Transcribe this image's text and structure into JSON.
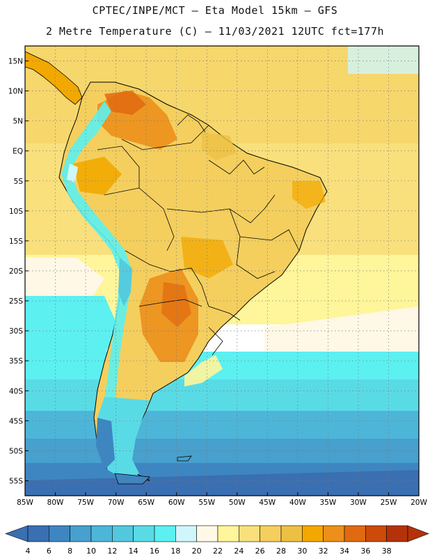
{
  "header": {
    "line1": "CPTEC/INPE/MCT –  Eta Model 15km – GFS",
    "line2": "2 Metre Temperature (C) – 11/03/2021 12UTC fct=177h"
  },
  "map": {
    "projection": "lat-lon",
    "lon_range": [
      -85,
      -20
    ],
    "lat_range": [
      -57.5,
      17.5
    ],
    "lat_ticks": [
      "15N",
      "10N",
      "5N",
      "EQ",
      "5S",
      "10S",
      "15S",
      "20S",
      "25S",
      "30S",
      "35S",
      "40S",
      "45S",
      "50S",
      "55S"
    ],
    "lon_ticks": [
      "85W",
      "80W",
      "75W",
      "70W",
      "65W",
      "60W",
      "55W",
      "50W",
      "45W",
      "40W",
      "35W",
      "30W",
      "25W",
      "20W"
    ]
  },
  "colorbar": {
    "labels": [
      "4",
      "6",
      "8",
      "10",
      "12",
      "14",
      "16",
      "18",
      "20",
      "22",
      "24",
      "26",
      "28",
      "30",
      "32",
      "34",
      "36",
      "38"
    ],
    "colors": [
      "#3a6fb2",
      "#3e86c1",
      "#47a0cd",
      "#4db6d8",
      "#52c8de",
      "#59dbe6",
      "#5cf0f1",
      "#cff6fb",
      "#fff8e6",
      "#fff59a",
      "#f9e07c",
      "#f4cf5e",
      "#ecc043",
      "#f2a800",
      "#ec8f1b",
      "#e06a10",
      "#cc4a0a",
      "#b4320a"
    ],
    "low_arrow_color": "#3a6fb2",
    "high_arrow_color": "#b4320a"
  }
}
